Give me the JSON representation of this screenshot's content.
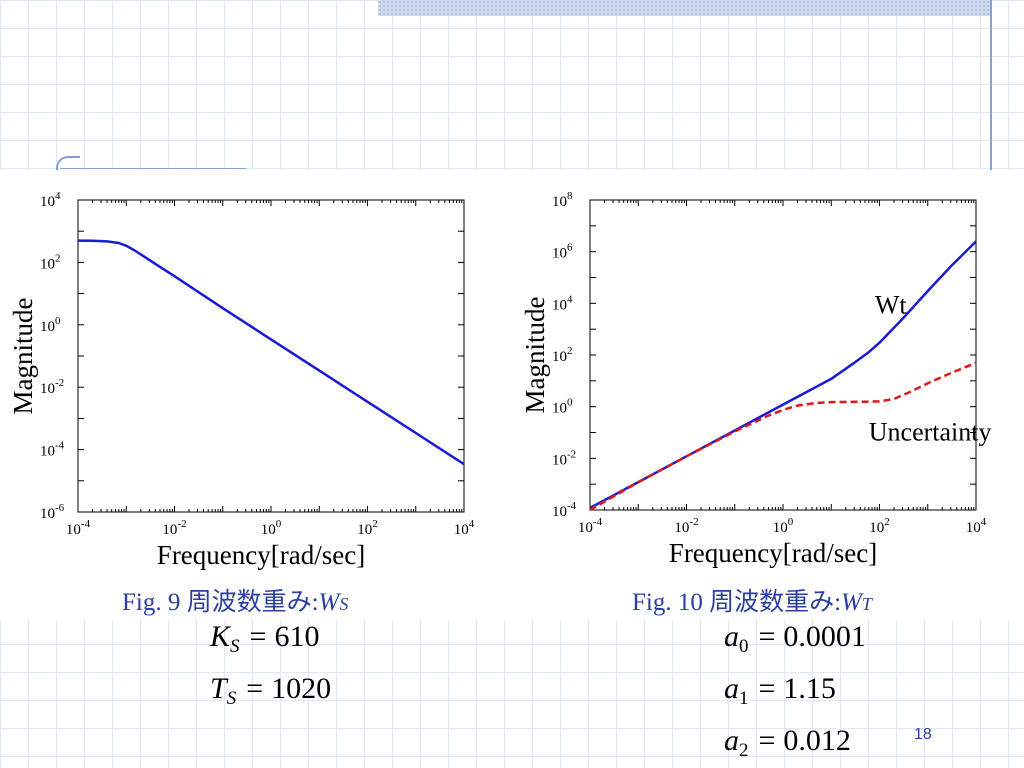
{
  "charts": [
    {
      "caption": {
        "prefix": "Fig. 9  周波数重み:",
        "symbol": "W",
        "subscript": "S"
      }
    },
    {
      "caption": {
        "prefix": "Fig. 10  周波数重み:",
        "symbol": "W",
        "subscript": "T"
      }
    }
  ],
  "params_left": [
    {
      "var": "K",
      "sub": "S",
      "value": "610"
    },
    {
      "var": "T",
      "sub": "S",
      "value": "1020"
    }
  ],
  "params_right": [
    {
      "var": "a",
      "sub": "0",
      "value": "0.0001"
    },
    {
      "var": "a",
      "sub": "1",
      "value": "1.15"
    },
    {
      "var": "a",
      "sub": "2",
      "value": "0.012"
    }
  ],
  "page_number": "18",
  "chart_data": [
    {
      "type": "line",
      "title": "",
      "xlabel": "Frequency[rad/sec]",
      "ylabel": "Magnitude",
      "xscale": "log",
      "yscale": "log",
      "xlim": [
        0.0001,
        10000
      ],
      "ylim": [
        1e-06,
        10000
      ],
      "xticks": [
        {
          "base": "10",
          "exp": "-4"
        },
        {
          "base": "10",
          "exp": "-2"
        },
        {
          "base": "10",
          "exp": "0"
        },
        {
          "base": "10",
          "exp": "2"
        },
        {
          "base": "10",
          "exp": "4"
        }
      ],
      "yticks": [
        {
          "base": "10",
          "exp": "4"
        },
        {
          "base": "10",
          "exp": "2"
        },
        {
          "base": "10",
          "exp": "0"
        },
        {
          "base": "10",
          "exp": "-2"
        },
        {
          "base": "10",
          "exp": "-4"
        },
        {
          "base": "10",
          "exp": "-6"
        }
      ],
      "grid": false,
      "series": [
        {
          "color": "#1a1ad6",
          "dash": false,
          "x": [
            0.0001,
            0.0002,
            0.0004,
            0.0007,
            0.001,
            0.0015,
            0.002,
            0.003,
            0.005,
            0.01,
            0.1,
            1,
            10,
            100,
            1000,
            10000
          ],
          "y": [
            500,
            495,
            470,
            420,
            340,
            240,
            180,
            120,
            72,
            36,
            3.4,
            0.34,
            0.034,
            0.0034,
            0.00034,
            3.4e-05
          ]
        }
      ],
      "annotations": []
    },
    {
      "type": "line",
      "title": "",
      "xlabel": "Frequency[rad/sec]",
      "ylabel": "Magnitude",
      "xscale": "log",
      "yscale": "log",
      "xlim": [
        0.0001,
        10000
      ],
      "ylim": [
        0.0001,
        100000000
      ],
      "xticks": [
        {
          "base": "10",
          "exp": "-4"
        },
        {
          "base": "10",
          "exp": "-2"
        },
        {
          "base": "10",
          "exp": "0"
        },
        {
          "base": "10",
          "exp": "2"
        },
        {
          "base": "10",
          "exp": "4"
        }
      ],
      "yticks": [
        {
          "base": "10",
          "exp": "8"
        },
        {
          "base": "10",
          "exp": "6"
        },
        {
          "base": "10",
          "exp": "4"
        },
        {
          "base": "10",
          "exp": "2"
        },
        {
          "base": "10",
          "exp": "0"
        },
        {
          "base": "10",
          "exp": "-2"
        },
        {
          "base": "10",
          "exp": "-4"
        }
      ],
      "grid": false,
      "series": [
        {
          "color": "#1a1ad6",
          "dash": false,
          "x": [
            0.0001,
            0.001,
            0.01,
            0.1,
            1,
            10,
            30,
            60,
            100,
            300,
            1000,
            3000,
            10000
          ],
          "y": [
            0.00012,
            0.0012,
            0.012,
            0.12,
            1.2,
            12,
            50,
            130,
            300,
            2500,
            30000,
            270000,
            2500000
          ]
        },
        {
          "color": "#e01818",
          "dash": true,
          "x": [
            0.0001,
            0.001,
            0.01,
            0.1,
            0.5,
            1,
            2,
            5,
            10,
            50,
            100,
            200,
            400,
            1000,
            3000,
            10000
          ],
          "y": [
            0.0001,
            0.0012,
            0.012,
            0.11,
            0.45,
            0.75,
            1.1,
            1.4,
            1.5,
            1.55,
            1.6,
            2,
            3.5,
            8,
            20,
            50
          ]
        }
      ],
      "annotations": [
        {
          "text": "Wt",
          "x": 80,
          "y": 4000
        },
        {
          "text": "Uncertainty",
          "x": 60,
          "y": 0.05
        }
      ]
    }
  ]
}
